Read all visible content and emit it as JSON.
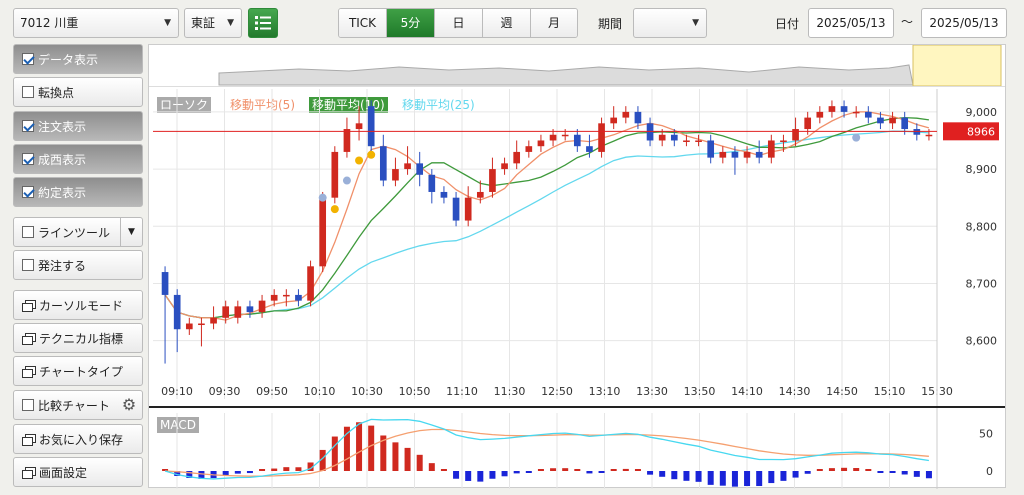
{
  "toolbar": {
    "stock": "7012 川重",
    "market": "東証",
    "periods": [
      "TICK",
      "5分",
      "日",
      "週",
      "月"
    ],
    "active_period": "5分",
    "period_label": "期間",
    "period_value": "",
    "date_label": "日付",
    "date_from": "2025/05/13",
    "tilde": "～",
    "date_to": "2025/05/13"
  },
  "sidebar": {
    "items": [
      {
        "label": "データ表示",
        "checked": true,
        "pressed": true
      },
      {
        "label": "転換点",
        "checked": false,
        "pressed": false
      },
      {
        "label": "注文表示",
        "checked": true,
        "pressed": true
      },
      {
        "label": "成西表示",
        "checked": true,
        "pressed": true
      },
      {
        "label": "約定表示",
        "checked": true,
        "pressed": true
      },
      {
        "label": "ラインツール",
        "checked": false,
        "pressed": false
      },
      {
        "label": "発注する",
        "checked": false,
        "pressed": false
      },
      {
        "label": "カーソルモード"
      },
      {
        "label": "テクニカル指標"
      },
      {
        "label": "チャートタイプ"
      },
      {
        "label": "比較チャート",
        "checked": false
      },
      {
        "label": "お気に入り保存"
      },
      {
        "label": "画面設定"
      }
    ]
  },
  "legend": {
    "candle": "ローソク",
    "ma5": "移動平均(5)",
    "ma10": "移動平均(10)",
    "ma25": "移動平均(25)",
    "macd": "MACD"
  },
  "colors": {
    "up": "#d0291f",
    "down": "#2a4fc0",
    "ma5": "#f0906a",
    "ma10": "#3f9a3c",
    "ma25": "#63d8ee",
    "price_line": "#e02020",
    "macd": "#47d8f0",
    "signal": "#f5a070"
  },
  "current_price": "8966",
  "chart_data": {
    "type": "candlestick",
    "ylim": [
      8540,
      9040
    ],
    "y_ticks": [
      "9,000",
      "8,900",
      "8,800",
      "8,700",
      "8,600"
    ],
    "x_ticks": [
      "09:10",
      "09:30",
      "09:50",
      "10:10",
      "10:30",
      "10:50",
      "11:10",
      "11:30",
      "12:50",
      "13:10",
      "13:30",
      "13:50",
      "14:10",
      "14:30",
      "14:50",
      "15:10",
      "15:30"
    ],
    "macd_ticks": [
      "50",
      "0"
    ],
    "candles": [
      [
        8720,
        8680,
        8730,
        8560
      ],
      [
        8680,
        8620,
        8690,
        8580
      ],
      [
        8620,
        8630,
        8640,
        8610
      ],
      [
        8630,
        8630,
        8640,
        8590
      ],
      [
        8630,
        8640,
        8660,
        8620
      ],
      [
        8640,
        8660,
        8670,
        8630
      ],
      [
        8640,
        8660,
        8670,
        8630
      ],
      [
        8660,
        8650,
        8670,
        8640
      ],
      [
        8650,
        8670,
        8680,
        8640
      ],
      [
        8670,
        8680,
        8690,
        8660
      ],
      [
        8680,
        8680,
        8690,
        8660
      ],
      [
        8680,
        8670,
        8690,
        8660
      ],
      [
        8670,
        8730,
        8740,
        8660
      ],
      [
        8730,
        8850,
        8860,
        8720
      ],
      [
        8850,
        8930,
        8940,
        8840
      ],
      [
        8930,
        8970,
        8990,
        8920
      ],
      [
        8970,
        8980,
        9010,
        8950
      ],
      [
        9010,
        8940,
        9020,
        8930
      ],
      [
        8940,
        8880,
        8960,
        8870
      ],
      [
        8880,
        8900,
        8920,
        8870
      ],
      [
        8900,
        8910,
        8940,
        8890
      ],
      [
        8910,
        8890,
        8930,
        8870
      ],
      [
        8890,
        8860,
        8900,
        8840
      ],
      [
        8860,
        8850,
        8870,
        8840
      ],
      [
        8850,
        8810,
        8860,
        8800
      ],
      [
        8810,
        8850,
        8870,
        8800
      ],
      [
        8850,
        8860,
        8880,
        8840
      ],
      [
        8860,
        8900,
        8920,
        8850
      ],
      [
        8900,
        8910,
        8920,
        8890
      ],
      [
        8910,
        8930,
        8950,
        8900
      ],
      [
        8930,
        8940,
        8950,
        8920
      ],
      [
        8940,
        8950,
        8960,
        8930
      ],
      [
        8950,
        8960,
        8970,
        8940
      ],
      [
        8960,
        8960,
        8970,
        8950
      ],
      [
        8960,
        8940,
        8970,
        8930
      ],
      [
        8940,
        8930,
        8960,
        8920
      ],
      [
        8930,
        8980,
        8990,
        8920
      ],
      [
        8980,
        8990,
        9010,
        8970
      ],
      [
        8990,
        9000,
        9010,
        8980
      ],
      [
        9000,
        8980,
        9010,
        8970
      ],
      [
        8980,
        8950,
        8990,
        8940
      ],
      [
        8950,
        8960,
        8970,
        8940
      ],
      [
        8960,
        8950,
        8970,
        8940
      ],
      [
        8950,
        8950,
        8960,
        8940
      ],
      [
        8950,
        8950,
        8960,
        8940
      ],
      [
        8950,
        8920,
        8960,
        8910
      ],
      [
        8920,
        8930,
        8940,
        8910
      ],
      [
        8930,
        8920,
        8940,
        8890
      ],
      [
        8920,
        8930,
        8940,
        8910
      ],
      [
        8930,
        8920,
        8950,
        8910
      ],
      [
        8920,
        8950,
        8960,
        8910
      ],
      [
        8950,
        8950,
        8960,
        8930
      ],
      [
        8950,
        8970,
        8990,
        8940
      ],
      [
        8970,
        8990,
        9000,
        8960
      ],
      [
        8990,
        9000,
        9010,
        8980
      ],
      [
        9000,
        9010,
        9020,
        8990
      ],
      [
        9010,
        9000,
        9020,
        8990
      ],
      [
        9000,
        9000,
        9010,
        8990
      ],
      [
        9000,
        8990,
        9010,
        8980
      ],
      [
        8990,
        8980,
        9000,
        8970
      ],
      [
        8980,
        8990,
        9000,
        8970
      ],
      [
        8990,
        8970,
        9000,
        8960
      ],
      [
        8970,
        8960,
        8980,
        8950
      ],
      [
        8960,
        8960,
        8970,
        8950
      ]
    ]
  }
}
